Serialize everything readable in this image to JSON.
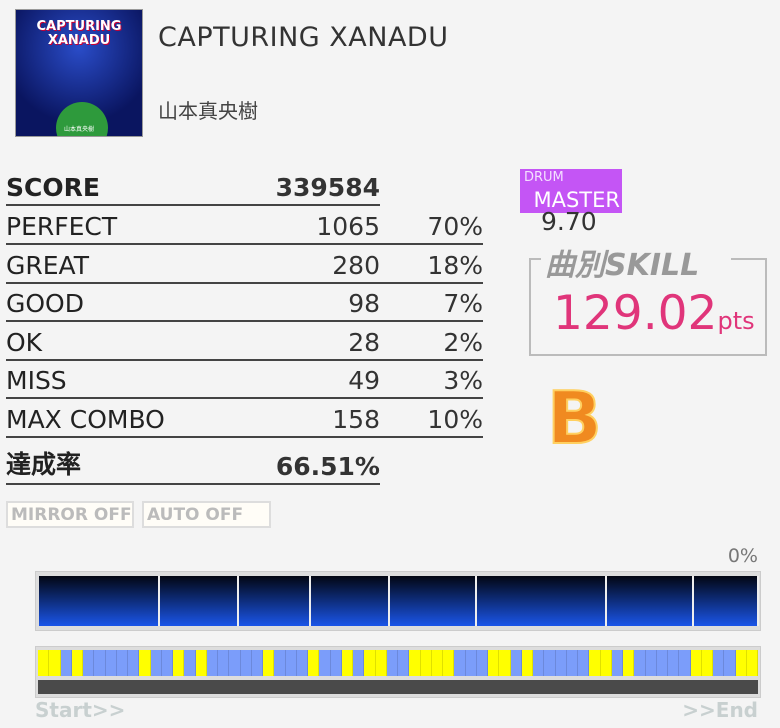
{
  "song": {
    "title": "CAPTURING XANADU",
    "artist": "山本真央樹",
    "jacket_text": "CAPTURING XANADU",
    "jacket_artist": "山本真央樹"
  },
  "score": {
    "score_label": "SCORE",
    "score": "339584",
    "rows": [
      {
        "label": "PERFECT",
        "count": "1065",
        "pct": "70%"
      },
      {
        "label": "GREAT",
        "count": "280",
        "pct": "18%"
      },
      {
        "label": "GOOD",
        "count": "98",
        "pct": "7%"
      },
      {
        "label": "OK",
        "count": "28",
        "pct": "2%"
      },
      {
        "label": "MISS",
        "count": "49",
        "pct": "3%"
      },
      {
        "label": "MAX COMBO",
        "count": "158",
        "pct": "10%"
      }
    ],
    "achievement_label": "達成率",
    "achievement": "66.51%"
  },
  "difficulty": {
    "instrument": "DRUM",
    "level_name": "MASTER",
    "level": "9.70",
    "color": "#c455f5"
  },
  "skill": {
    "title": "曲別SKILL",
    "value": "129.02",
    "unit": "pts"
  },
  "rank": "B",
  "options": {
    "mirror": "MIRROR OFF",
    "auto": "AUTO OFF"
  },
  "progress": {
    "percent": "0%",
    "start": "Start>>",
    "end": ">>End",
    "cells": "YYBYBBBBBYBBYBYBBBBBYBBBYBBYBYYBBYYYYBBBYYBYBBBBBYYBYBBBBBYYBBYY",
    "cell_colors": {
      "Y": "#ffff00",
      "B": "#7b9dfa"
    }
  }
}
